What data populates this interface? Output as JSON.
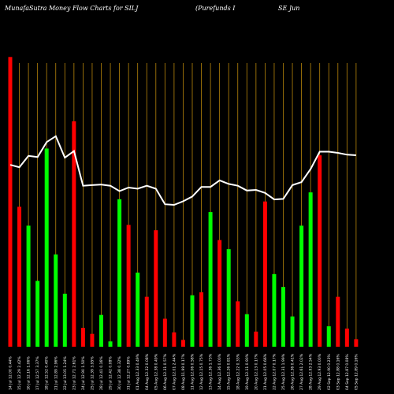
{
  "header": {
    "left": "MunafaSutra  Money Flow  Charts for SILJ",
    "mid": "(Purefunds I",
    "right": "SE Jun"
  },
  "colors": {
    "background": "#000000",
    "up": "#00ff00",
    "down": "#ff0000",
    "grid": "#b8860b",
    "line": "#ffffff"
  },
  "chart_data": {
    "type": "bar",
    "title": "MunafaSutra  Money Flow  Charts for SILJ",
    "grid": "vertical",
    "overlay_line": "price",
    "bars": [
      {
        "label": "14 Jul 12.00 0.44%",
        "value": 383,
        "color": "down"
      },
      {
        "label": "15 Jul 12.29 2.42%",
        "value": 185,
        "color": "down"
      },
      {
        "label": "16 Jul 12.16 1.06%",
        "value": 160,
        "color": "up"
      },
      {
        "label": "17 Jul 12.57 3.37%",
        "value": 87,
        "color": "up"
      },
      {
        "label": "18 Jul 12.52 0.40%",
        "value": 262,
        "color": "up"
      },
      {
        "label": "21 Jul 12.89 2.96%",
        "value": 122,
        "color": "up"
      },
      {
        "label": "22 Jul 13.05 1.24%",
        "value": 70,
        "color": "up"
      },
      {
        "label": "23 Jul 12.71 2.61%",
        "value": 298,
        "color": "down"
      },
      {
        "label": "24 Jul 12.90 1.50%",
        "value": 25,
        "color": "down"
      },
      {
        "label": "25 Jul 12.39 3.95%",
        "value": 17,
        "color": "down"
      },
      {
        "label": "28 Jul 12.41 0.16%",
        "value": 42,
        "color": "up"
      },
      {
        "label": "29 Jul 12.42 0.08%",
        "value": 7,
        "color": "up"
      },
      {
        "label": "30 Jul 12.38 0.32%",
        "value": 195,
        "color": "up"
      },
      {
        "label": "31 Jul 12.27 0.89%",
        "value": 161,
        "color": "down"
      },
      {
        "label": "01 Aug 12.33 0.49%",
        "value": 98,
        "color": "up"
      },
      {
        "label": "04 Aug 12.32 0.08%",
        "value": 66,
        "color": "down"
      },
      {
        "label": "05 Aug 12.38 0.49%",
        "value": 154,
        "color": "down"
      },
      {
        "label": "06 Aug 12.31 0.57%",
        "value": 37,
        "color": "down"
      },
      {
        "label": "07 Aug 12.01 2.44%",
        "value": 19,
        "color": "down"
      },
      {
        "label": "08 Aug 11.99 0.17%",
        "value": 9,
        "color": "down"
      },
      {
        "label": "11 Aug 12.06 0.58%",
        "value": 68,
        "color": "up"
      },
      {
        "label": "12 Aug 12.15 0.75%",
        "value": 72,
        "color": "down"
      },
      {
        "label": "13 Aug 12.36 1.73%",
        "value": 178,
        "color": "up"
      },
      {
        "label": "14 Aug 12.36 0.00%",
        "value": 141,
        "color": "down"
      },
      {
        "label": "15 Aug 12.26 0.81%",
        "value": 129,
        "color": "up"
      },
      {
        "label": "18 Aug 12.22 0.33%",
        "value": 60,
        "color": "down"
      },
      {
        "label": "19 Aug 12.11 0.90%",
        "value": 43,
        "color": "up"
      },
      {
        "label": "20 Aug 12.13 0.17%",
        "value": 20,
        "color": "down"
      },
      {
        "label": "21 Aug 12.05 0.66%",
        "value": 192,
        "color": "down"
      },
      {
        "label": "22 Aug 12.07 0.17%",
        "value": 96,
        "color": "up"
      },
      {
        "label": "25 Aug 12.31 1.99%",
        "value": 79,
        "color": "up"
      },
      {
        "label": "26 Aug 12.36 0.41%",
        "value": 40,
        "color": "up"
      },
      {
        "label": "27 Aug 12.61 2.02%",
        "value": 160,
        "color": "up"
      },
      {
        "label": "28 Aug 12.93 2.54%",
        "value": 204,
        "color": "up"
      },
      {
        "label": "29 Aug 12.93 0.00%",
        "value": 253,
        "color": "down"
      },
      {
        "label": "02 Sep 12.90 0.23%",
        "value": 27,
        "color": "up"
      },
      {
        "label": "03 Sep 12.88 0.16%",
        "value": 66,
        "color": "down"
      },
      {
        "label": "04 Sep 12.87 0.08%",
        "value": 24,
        "color": "down"
      },
      {
        "label": "05 Sep 12.89 0.16%",
        "value": 10,
        "color": "down"
      }
    ],
    "line": [
      12.21,
      12.17,
      12.36,
      12.34,
      12.59,
      12.69,
      12.33,
      12.44,
      11.86,
      11.87,
      11.88,
      11.86,
      11.77,
      11.83,
      11.81,
      11.86,
      11.81,
      11.55,
      11.54,
      11.6,
      11.68,
      11.84,
      11.84,
      11.95,
      11.89,
      11.86,
      11.78,
      11.79,
      11.74,
      11.63,
      11.64,
      11.87,
      11.92,
      12.14,
      12.43,
      12.43,
      12.41,
      12.38,
      12.37
    ],
    "ylim": [
      0,
      400
    ]
  }
}
